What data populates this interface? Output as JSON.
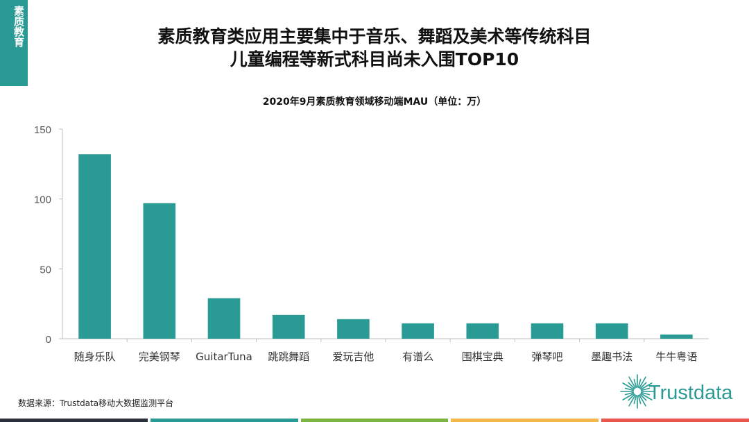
{
  "side_tab": {
    "label": "素质教育",
    "color": "#2a9a94"
  },
  "header": {
    "title_line1": "素质教育类应用主要集中于音乐、舞蹈及美术等传统科目",
    "title_line2": "儿童编程等新式科目尚未入围TOP10"
  },
  "chart_data": {
    "type": "bar",
    "title": "2020年9月素质教育领域移动端MAU（单位：万）",
    "categories": [
      "随身乐队",
      "完美钢琴",
      "GuitarTuna",
      "跳跳舞蹈",
      "爱玩吉他",
      "有谱么",
      "围棋宝典",
      "弹琴吧",
      "墨趣书法",
      "牛牛粤语"
    ],
    "values": [
      132,
      97,
      29,
      17,
      14,
      11,
      11,
      11,
      11,
      3
    ],
    "y_ticks": [
      "0",
      "50",
      "100",
      "150"
    ],
    "ylim": [
      0,
      150
    ],
    "bar_color": "#2a9a94",
    "grid": false,
    "legend": "none"
  },
  "footer": {
    "source": "数据来源：Trustdata移动大数据监测平台",
    "logo_text": "Trustdata",
    "bar_colors": [
      "#2a2f3a",
      "#2a9a94",
      "#7cb342",
      "#f2b84b",
      "#e9574c"
    ]
  }
}
